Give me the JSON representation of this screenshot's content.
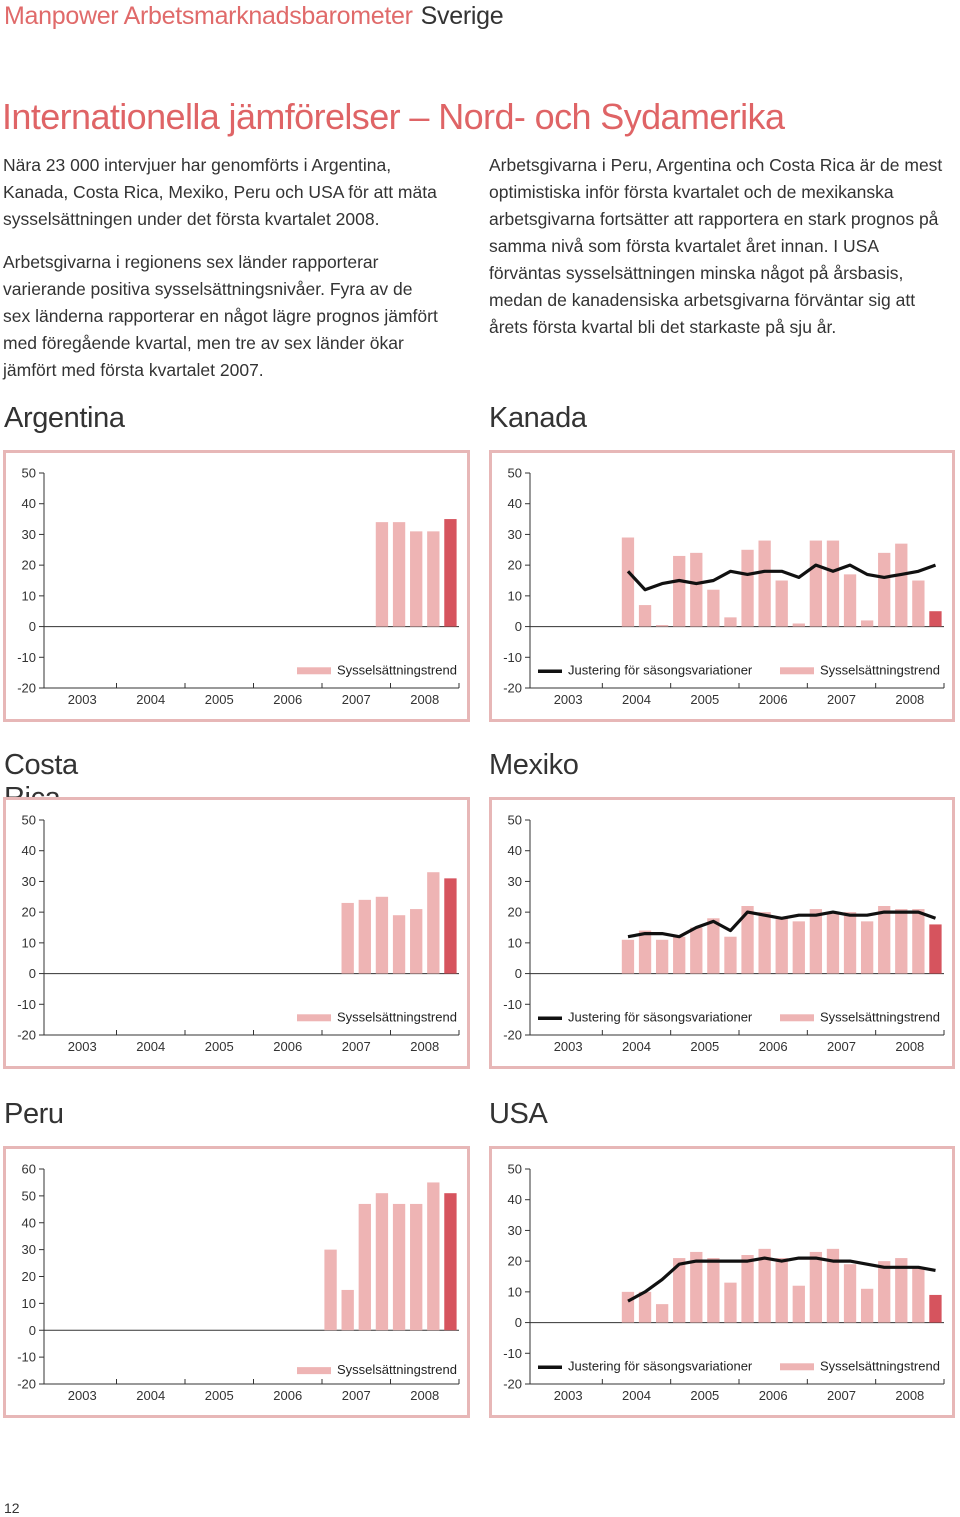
{
  "header": {
    "brand": "Manpower Arbetsmarknadsbarometer",
    "country": "Sverige"
  },
  "title": "Internationella jämförelser – Nord- och Sydamerika",
  "intro": {
    "left_p1": "Nära 23 000 intervjuer har genomförts i Argentina, Kanada, Costa Rica, Mexiko, Peru och USA för att mäta sysselsättningen under det första kvartalet 2008.",
    "left_p2": "Arbetsgivarna i regionens sex länder rapporterar varierande positiva sysselsättningsnivåer. Fyra av de sex länderna rapporterar en något lägre prognos jämfört med föregående kvartal, men tre av sex länder ökar jämfört med första kvartalet 2007.",
    "right_p1": "Arbetsgivarna i Peru, Argentina och Costa Rica är de mest optimistiska inför första kvartalet och de mexikanska arbetsgivarna fortsätter att rapportera en stark prognos på samma nivå som första kvartalet året innan. I USA förväntas sysselsättningen minska något på årsbasis, medan de kanadensiska arbetsgivarna förväntar sig att årets första kvartal bli det starkaste på sju år."
  },
  "legend": {
    "trend_label": "Sysselsättningstrend",
    "seasonal_label": "Justering för säsongsvariationer"
  },
  "colors": {
    "bar": "#eeb4b4",
    "bar_last": "#d6545e",
    "line": "#111111",
    "frame": "#e7b7b7",
    "accent": "#df6466"
  },
  "page_number": "12",
  "chart_data": [
    {
      "name": "Argentina",
      "type": "bar",
      "x": [
        "2003",
        "2004",
        "2005",
        "2006",
        "2007",
        "2008"
      ],
      "ylim": [
        -20,
        50
      ],
      "yticks": [
        -20,
        -10,
        0,
        10,
        20,
        30,
        40,
        50
      ],
      "bars": [
        null,
        null,
        null,
        null,
        null,
        null,
        null,
        null,
        null,
        null,
        null,
        null,
        null,
        null,
        null,
        34,
        34,
        31,
        31,
        35
      ],
      "line": null,
      "legend": [
        "trend"
      ]
    },
    {
      "name": "Kanada",
      "type": "bar",
      "x": [
        "2003",
        "2004",
        "2005",
        "2006",
        "2007",
        "2008"
      ],
      "ylim": [
        -20,
        50
      ],
      "yticks": [
        -20,
        -10,
        0,
        10,
        20,
        30,
        40,
        50
      ],
      "bars": [
        29,
        7,
        0.5,
        23,
        24,
        12,
        3,
        25,
        28,
        15,
        1,
        28,
        28,
        17,
        2,
        24,
        27,
        15,
        5
      ],
      "line": [
        null,
        null,
        null,
        null,
        null,
        null,
        null,
        null,
        null,
        null,
        null,
        null,
        null,
        null,
        null,
        null,
        null,
        null,
        null,
        null
      ],
      "line_values": [
        18,
        12,
        14,
        15,
        14,
        15,
        18,
        17,
        18,
        18,
        16,
        20,
        18,
        20,
        17,
        16,
        17,
        18,
        20
      ],
      "legend": [
        "seasonal",
        "trend"
      ]
    },
    {
      "name": "Costa Rica",
      "type": "bar",
      "x": [
        "2003",
        "2004",
        "2005",
        "2006",
        "2007",
        "2008"
      ],
      "ylim": [
        -20,
        50
      ],
      "yticks": [
        -20,
        -10,
        0,
        10,
        20,
        30,
        40,
        50
      ],
      "bars": [
        null,
        null,
        null,
        null,
        null,
        null,
        null,
        null,
        null,
        null,
        null,
        null,
        null,
        null,
        23,
        24,
        25,
        19,
        21,
        33,
        31
      ],
      "line": null,
      "legend": [
        "trend"
      ]
    },
    {
      "name": "Mexiko",
      "type": "bar",
      "x": [
        "2003",
        "2004",
        "2005",
        "2006",
        "2007",
        "2008"
      ],
      "ylim": [
        -20,
        50
      ],
      "yticks": [
        -20,
        -10,
        0,
        10,
        20,
        30,
        40,
        50
      ],
      "bars": [
        11,
        14,
        11,
        12,
        15,
        18,
        12,
        22,
        20,
        18,
        17,
        21,
        20,
        20,
        17,
        22,
        21,
        21,
        16
      ],
      "line_values": [
        12,
        13,
        13,
        12,
        15,
        17,
        14,
        20,
        19,
        18,
        19,
        19,
        20,
        19,
        19,
        20,
        20,
        20,
        18
      ],
      "legend": [
        "seasonal",
        "trend"
      ]
    },
    {
      "name": "Peru",
      "type": "bar",
      "x": [
        "2003",
        "2004",
        "2005",
        "2006",
        "2007",
        "2008"
      ],
      "ylim": [
        -20,
        60
      ],
      "yticks": [
        -20,
        -10,
        0,
        10,
        20,
        30,
        40,
        50,
        60
      ],
      "bars": [
        null,
        null,
        null,
        null,
        null,
        null,
        null,
        null,
        null,
        null,
        null,
        null,
        30,
        15,
        47,
        51,
        47,
        47,
        55,
        51
      ],
      "line": null,
      "legend": [
        "trend"
      ]
    },
    {
      "name": "USA",
      "type": "bar",
      "x": [
        "2003",
        "2004",
        "2005",
        "2006",
        "2007",
        "2008"
      ],
      "ylim": [
        -20,
        50
      ],
      "yticks": [
        -20,
        -10,
        0,
        10,
        20,
        30,
        40,
        50
      ],
      "bars": [
        10,
        10,
        6,
        21,
        23,
        21,
        13,
        22,
        24,
        21,
        12,
        23,
        24,
        19,
        11,
        20,
        21,
        18,
        9
      ],
      "line_values": [
        7,
        10,
        14,
        19,
        20,
        20,
        20,
        20,
        21,
        20,
        21,
        21,
        20,
        20,
        19,
        18,
        18,
        18,
        17
      ],
      "legend": [
        "seasonal",
        "trend"
      ]
    }
  ]
}
